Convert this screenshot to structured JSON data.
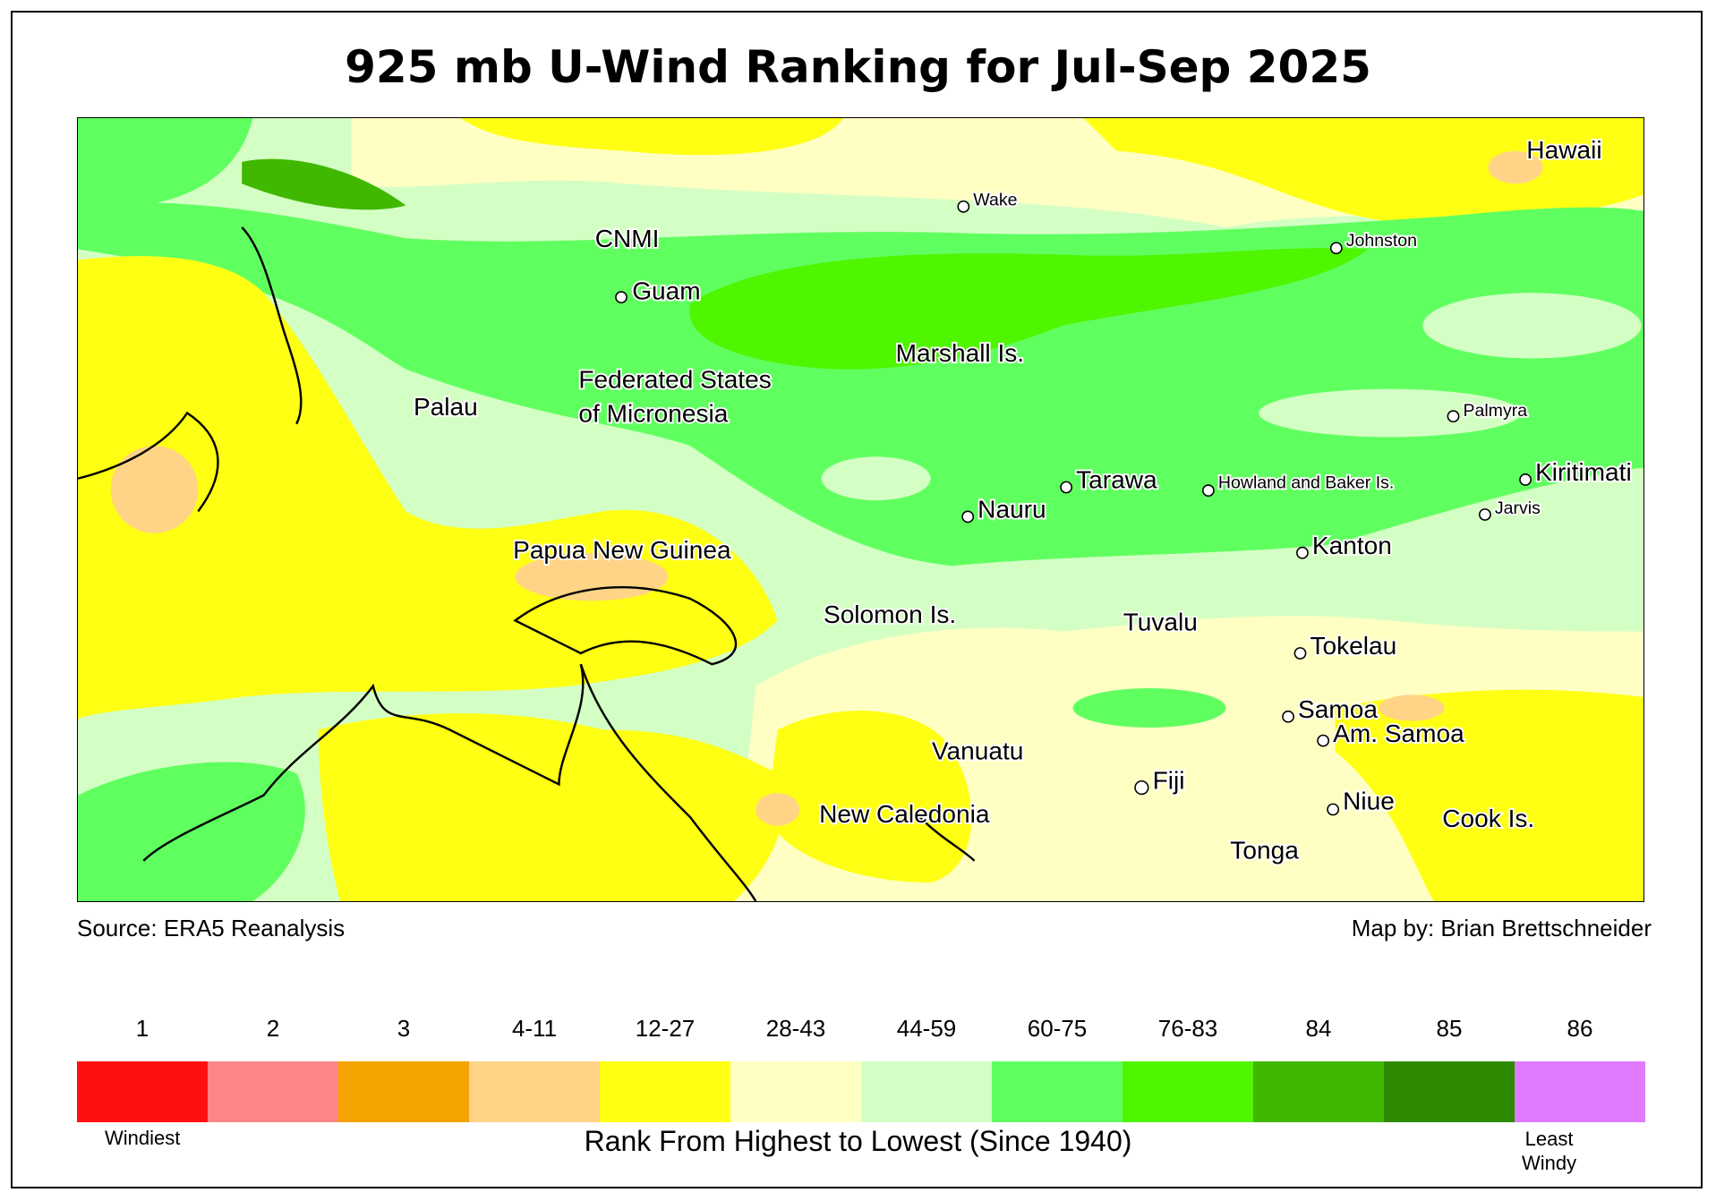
{
  "title": "925 mb U-Wind Ranking for Jul-Sep 2025",
  "source": "Source: ERA5 Reanalysis",
  "credit": "Map by: Brian Brettschneider",
  "map_labels": {
    "hawaii": "Hawaii",
    "wake": "Wake",
    "johnston": "Johnston",
    "cnmi": "CNMI",
    "guam": "Guam",
    "marshall": "Marshall Is.",
    "fsm1": "Federated States",
    "fsm2": "of Micronesia",
    "palau": "Palau",
    "palmyra": "Palmyra",
    "kiritimati": "Kiritimati",
    "jarvis": "Jarvis",
    "tarawa": "Tarawa",
    "howland": "Howland and Baker Is.",
    "nauru": "Nauru",
    "kanton": "Kanton",
    "png": "Papua New Guinea",
    "solomon": "Solomon Is.",
    "tuvalu": "Tuvalu",
    "tokelau": "Tokelau",
    "samoa": "Samoa",
    "amsamoa": "Am. Samoa",
    "vanuatu": "Vanuatu",
    "fiji": "Fiji",
    "niue": "Niue",
    "cook": "Cook Is.",
    "newcal": "New Caledonia",
    "tonga": "Tonga"
  },
  "legend": {
    "title": "Rank From Highest to Lowest (Since 1940)",
    "low_label": "Windiest",
    "high_label_1": "Least",
    "high_label_2": "Windy",
    "classes": [
      {
        "label": "1",
        "color": "#ff1010"
      },
      {
        "label": "2",
        "color": "#ff8686"
      },
      {
        "label": "3",
        "color": "#f5a300"
      },
      {
        "label": "4-11",
        "color": "#ffd486"
      },
      {
        "label": "12-27",
        "color": "#ffff14"
      },
      {
        "label": "28-43",
        "color": "#ffffc4"
      },
      {
        "label": "44-59",
        "color": "#d4ffc4"
      },
      {
        "label": "60-75",
        "color": "#60ff60"
      },
      {
        "label": "76-83",
        "color": "#50f500"
      },
      {
        "label": "84",
        "color": "#40b800"
      },
      {
        "label": "85",
        "color": "#2e8a00"
      },
      {
        "label": "86",
        "color": "#e07aff"
      }
    ]
  }
}
